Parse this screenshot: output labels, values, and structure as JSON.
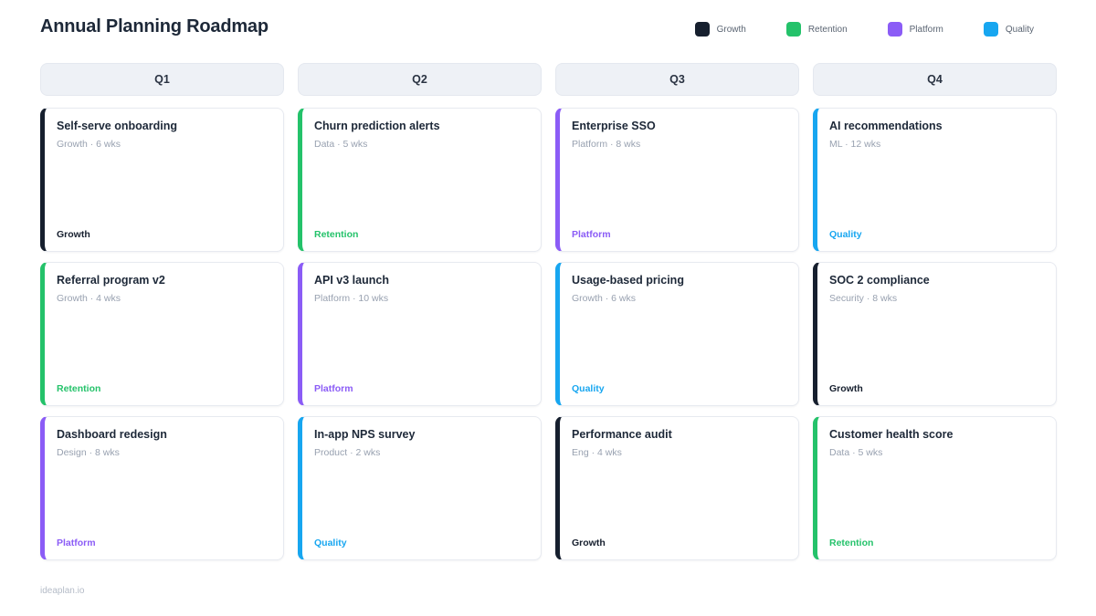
{
  "page": {
    "title": "Annual Planning Roadmap",
    "footer": "ideaplan.io"
  },
  "colors": {
    "growth": "#161f2e",
    "retention": "#24c26a",
    "platform": "#8b5cf6",
    "quality": "#17a6f0"
  },
  "legend": {
    "items": [
      {
        "key": "growth",
        "label": "Growth"
      },
      {
        "key": "retention",
        "label": "Retention"
      },
      {
        "key": "platform",
        "label": "Platform"
      },
      {
        "key": "quality",
        "label": "Quality"
      }
    ]
  },
  "board": {
    "columns": [
      {
        "header": "Q1",
        "cards": [
          {
            "title": "Self-serve onboarding",
            "meta": "Growth · 6 wks",
            "tag": "Growth",
            "tag_key": "growth"
          },
          {
            "title": "Referral program v2",
            "meta": "Growth · 4 wks",
            "tag": "Retention",
            "tag_key": "retention"
          },
          {
            "title": "Dashboard redesign",
            "meta": "Design · 8 wks",
            "tag": "Platform",
            "tag_key": "platform"
          }
        ]
      },
      {
        "header": "Q2",
        "cards": [
          {
            "title": "Churn prediction alerts",
            "meta": "Data · 5 wks",
            "tag": "Retention",
            "tag_key": "retention"
          },
          {
            "title": "API v3 launch",
            "meta": "Platform · 10 wks",
            "tag": "Platform",
            "tag_key": "platform"
          },
          {
            "title": "In-app NPS survey",
            "meta": "Product · 2 wks",
            "tag": "Quality",
            "tag_key": "quality"
          }
        ]
      },
      {
        "header": "Q3",
        "cards": [
          {
            "title": "Enterprise SSO",
            "meta": "Platform · 8 wks",
            "tag": "Platform",
            "tag_key": "platform"
          },
          {
            "title": "Usage-based pricing",
            "meta": "Growth · 6 wks",
            "tag": "Quality",
            "tag_key": "quality"
          },
          {
            "title": "Performance audit",
            "meta": "Eng · 4 wks",
            "tag": "Growth",
            "tag_key": "growth"
          }
        ]
      },
      {
        "header": "Q4",
        "cards": [
          {
            "title": "AI recommendations",
            "meta": "ML · 12 wks",
            "tag": "Quality",
            "tag_key": "quality"
          },
          {
            "title": "SOC 2 compliance",
            "meta": "Security · 8 wks",
            "tag": "Growth",
            "tag_key": "growth"
          },
          {
            "title": "Customer health score",
            "meta": "Data · 5 wks",
            "tag": "Retention",
            "tag_key": "retention"
          }
        ]
      }
    ]
  }
}
